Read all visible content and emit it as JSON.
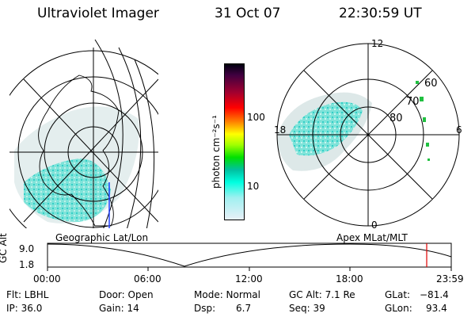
{
  "header": {
    "title": "Ultraviolet Imager",
    "date": "31 Oct 07",
    "time": "22:30:59 UT"
  },
  "colorbar": {
    "unit_label": "photon cm⁻²s⁻¹",
    "ticks": [
      "100",
      "10"
    ]
  },
  "polar": {
    "lat_labels": [
      "60",
      "70",
      "80"
    ],
    "mlt_labels": [
      "12",
      "18",
      "6",
      "0"
    ]
  },
  "timeline": {
    "left_caption": "Geographic Lat/Lon",
    "right_caption": "Apex MLat/MLT",
    "y_axis_label": "GC Alt",
    "y_ticks": [
      "9.0",
      "1.8"
    ],
    "x_ticks": [
      "00:00",
      "06:00",
      "12:00",
      "18:00",
      "23:59"
    ],
    "marker_color": "#e00000"
  },
  "info": {
    "flt": "Flt: LBHL",
    "ip": "IP: 36.0",
    "door": "Door: Open",
    "gain": "Gain: 14",
    "mode": "Mode: Normal",
    "dsp_label": "Dsp:",
    "dsp_value": "6.7",
    "gc_alt": "GC Alt: 7.1 Re",
    "seq": "Seq: 39",
    "glat_label": "GLat:",
    "glat_value": "−81.4",
    "glon_label": "GLon:",
    "glon_value": "93.4"
  }
}
